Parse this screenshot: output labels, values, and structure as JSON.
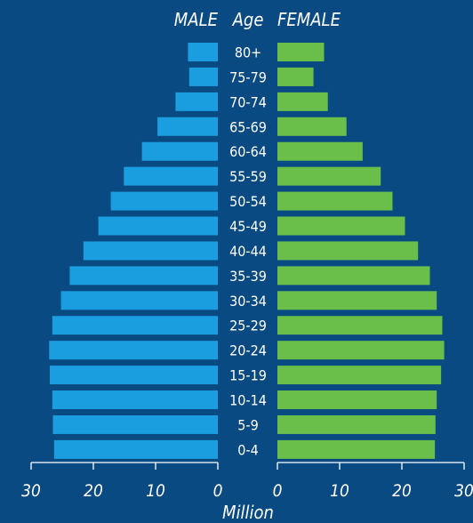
{
  "chart_data": {
    "type": "bar",
    "orientation": "horizontal",
    "layout": "population-pyramid",
    "headers": {
      "male": "MALE",
      "age": "Age",
      "female": "FEMALE"
    },
    "categories": [
      "80+",
      "75-79",
      "70-74",
      "65-69",
      "60-64",
      "55-59",
      "50-54",
      "45-49",
      "40-44",
      "35-39",
      "30-34",
      "25-29",
      "20-24",
      "15-19",
      "10-14",
      "5-9",
      "0-4"
    ],
    "series": [
      {
        "name": "MALE",
        "color": "#1a9ee0",
        "values": [
          4.8,
          4.6,
          6.8,
          9.7,
          12.2,
          15.1,
          17.2,
          19.2,
          21.6,
          23.8,
          25.2,
          26.6,
          27.1,
          27.0,
          26.6,
          26.5,
          26.3
        ]
      },
      {
        "name": "FEMALE",
        "color": "#6abf4b",
        "values": [
          7.5,
          5.8,
          8.1,
          11.1,
          13.7,
          16.6,
          18.5,
          20.5,
          22.6,
          24.5,
          25.6,
          26.5,
          26.8,
          26.3,
          25.6,
          25.4,
          25.3
        ]
      }
    ],
    "xlabel": "Million",
    "xlim": [
      0,
      30
    ],
    "ticks": [
      0,
      10,
      20,
      30
    ],
    "grid": false,
    "background": "#0a4a82"
  }
}
